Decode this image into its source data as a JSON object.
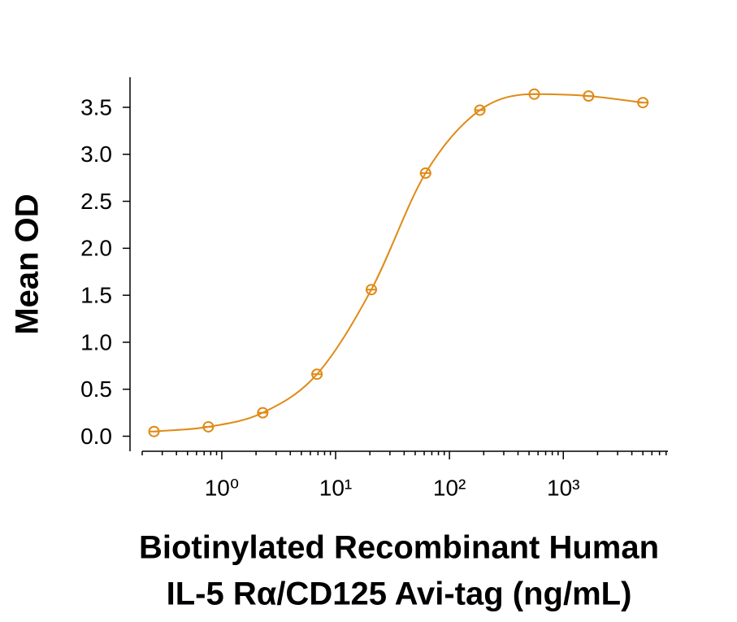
{
  "chart_data": {
    "type": "scatter",
    "y_label": "Mean OD",
    "x_label": [
      "Biotinylated Recombinant Human",
      "IL-5 Rα/CD125 Avi-tag (ng/mL)"
    ],
    "x": [
      0.254,
      0.762,
      2.29,
      6.86,
      20.6,
      61.7,
      185,
      556,
      1667,
      5000
    ],
    "values": [
      0.05,
      0.1,
      0.25,
      0.66,
      1.56,
      2.8,
      3.47,
      3.64,
      3.62,
      3.55
    ],
    "color": "#e08a16",
    "xscale": "log",
    "xlim": [
      0.2,
      8300
    ],
    "xticks": [
      {
        "value": 1,
        "label": "10⁰"
      },
      {
        "value": 10,
        "label": "10¹"
      },
      {
        "value": 100,
        "label": "10²"
      },
      {
        "value": 1000,
        "label": "10³"
      }
    ],
    "ylim": [
      -0.16,
      3.82
    ],
    "yticks": [
      {
        "value": 0,
        "label": "0.0"
      },
      {
        "value": 0.5,
        "label": "0.5"
      },
      {
        "value": 1,
        "label": "1.0"
      },
      {
        "value": 1.5,
        "label": "1.5"
      },
      {
        "value": 2,
        "label": "2.0"
      },
      {
        "value": 2.5,
        "label": "2.5"
      },
      {
        "value": 3,
        "label": "3.0"
      },
      {
        "value": 3.5,
        "label": "3.5"
      }
    ]
  }
}
